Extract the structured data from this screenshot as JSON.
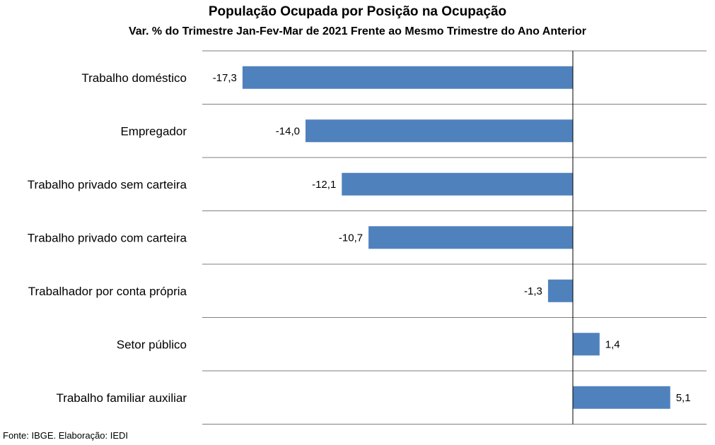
{
  "title": "População Ocupada por Posição na Ocupação",
  "subtitle": "Var. % do Trimestre Jan-Fev-Mar de 2021 Frente ao Mesmo Trimestre do Ano Anterior",
  "source": "Fonte: IBGE. Elaboração: IEDI",
  "chart_data": {
    "type": "bar",
    "orientation": "horizontal",
    "title": "População Ocupada por Posição na Ocupação",
    "subtitle": "Var. % do Trimestre Jan-Fev-Mar de 2021 Frente ao Mesmo Trimestre do Ano Anterior",
    "categories": [
      "Trabalho doméstico",
      "Empregador",
      "Trabalho privado sem carteira",
      "Trabalho privado com carteira",
      "Trabalhador por conta própria",
      "Setor público",
      "Trabalho familiar auxiliar"
    ],
    "values": [
      -17.3,
      -14.0,
      -12.1,
      -10.7,
      -1.3,
      1.4,
      5.1
    ],
    "data_labels": [
      "-17,3",
      "-14,0",
      "-12,1",
      "-10,7",
      "-1,3",
      "1,4",
      "5,1"
    ],
    "bar_color": "#4F81BD",
    "grid": true,
    "legend": "none"
  }
}
